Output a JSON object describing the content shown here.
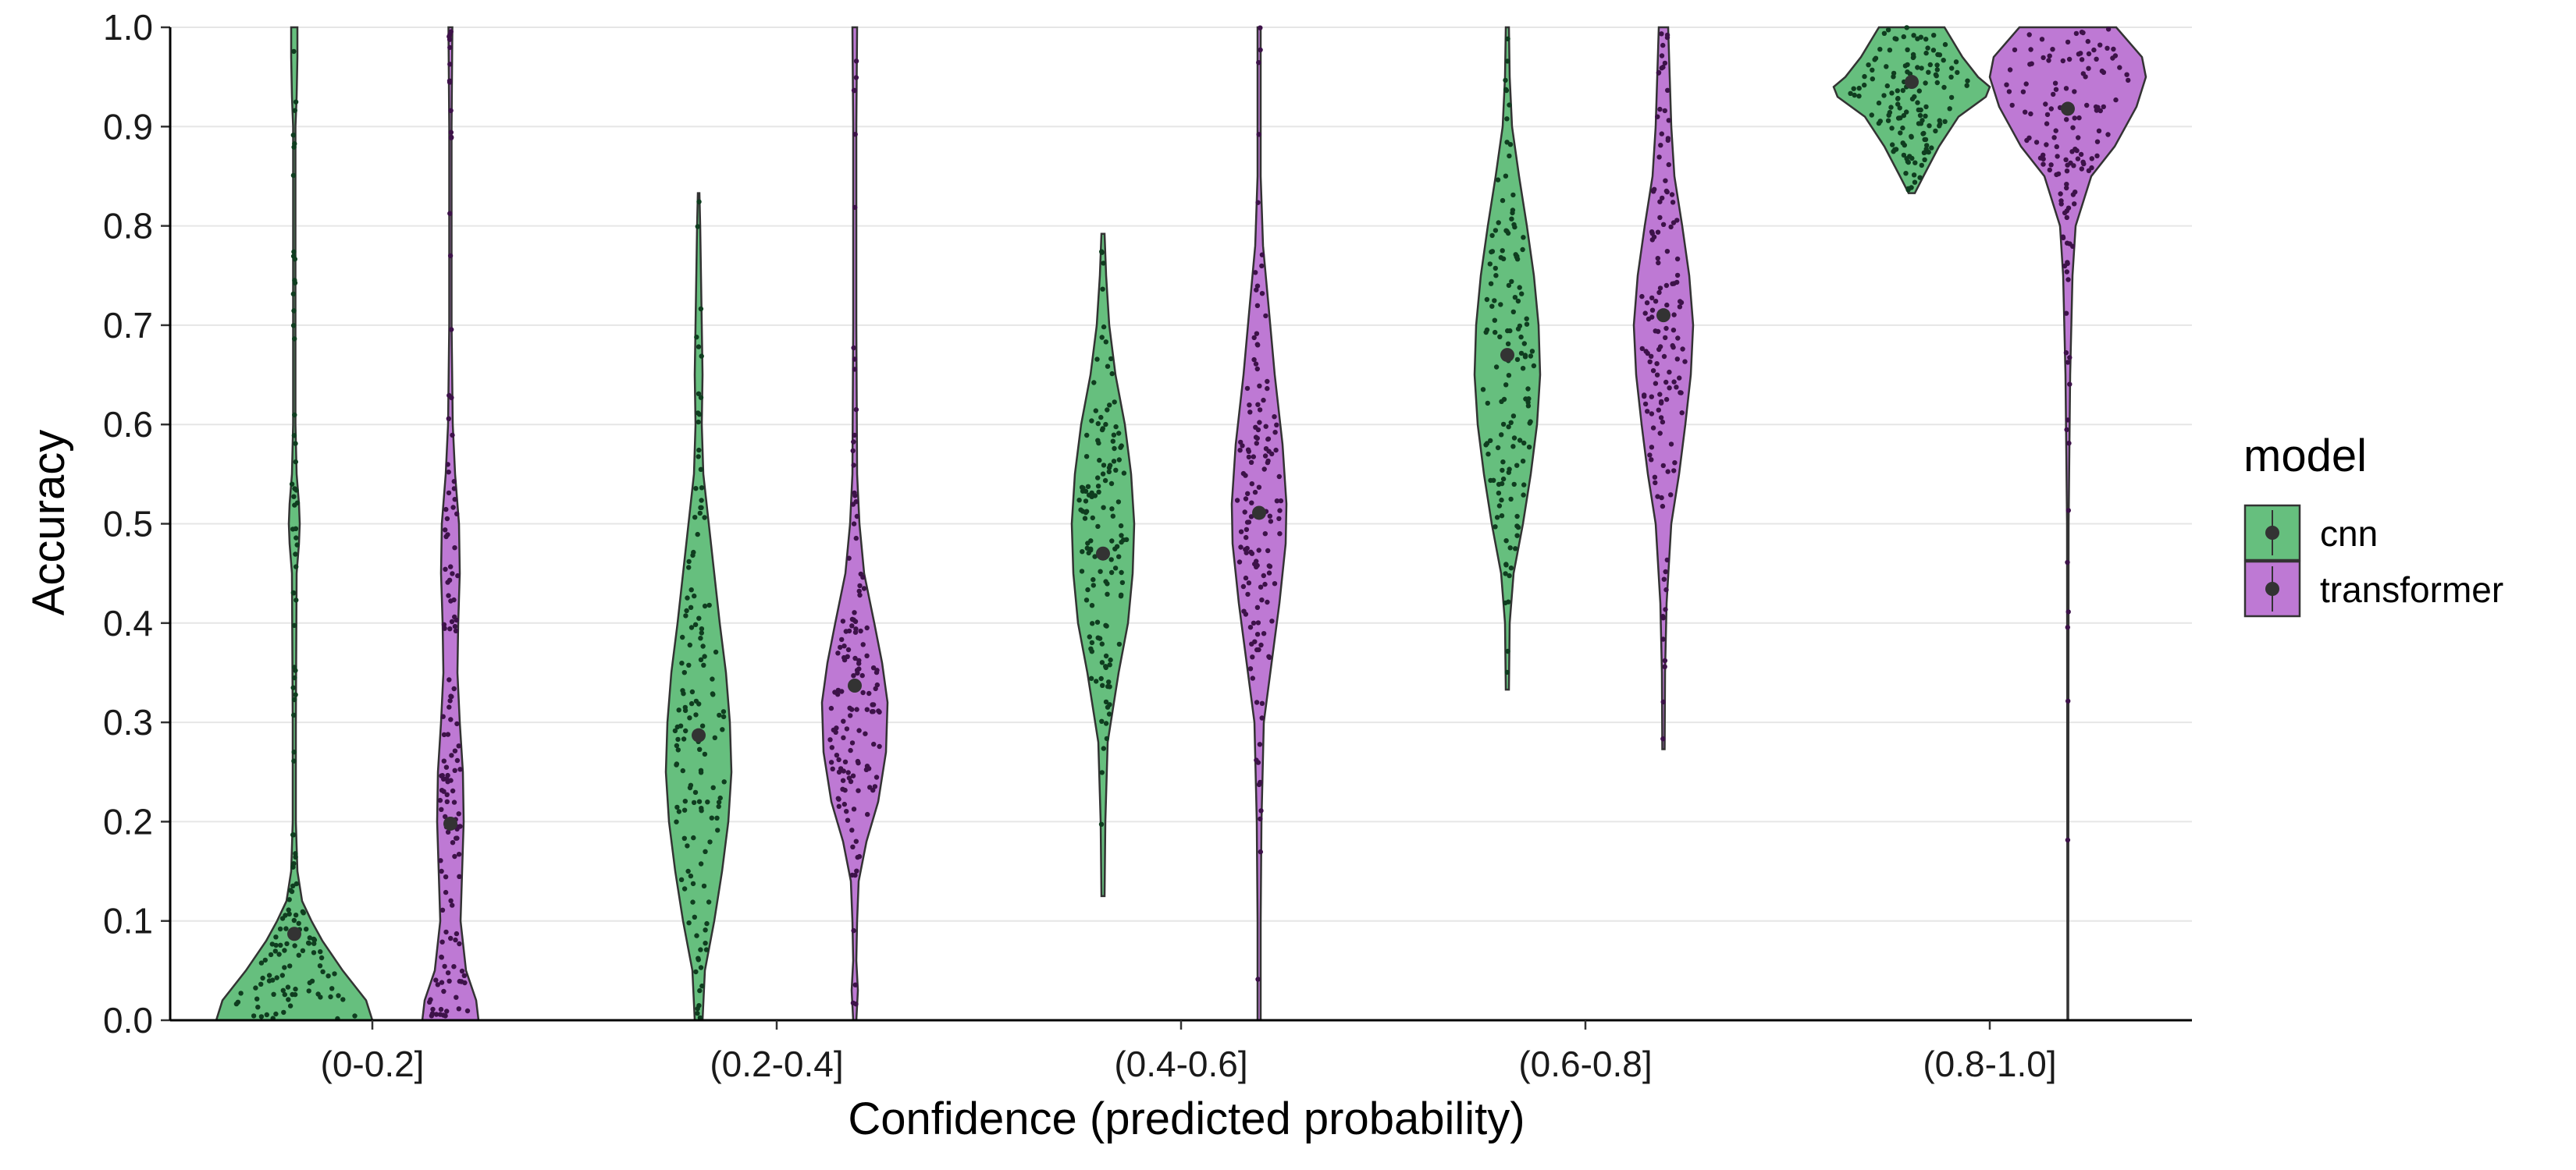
{
  "chart_data": {
    "type": "violin",
    "xlabel": "Confidence (predicted probability)",
    "ylabel": "Accuracy",
    "ylim": [
      0,
      1
    ],
    "yticks": [
      "0.0",
      "0.1",
      "0.2",
      "0.3",
      "0.4",
      "0.5",
      "0.6",
      "0.7",
      "0.8",
      "0.9",
      "1.0"
    ],
    "categories": [
      "(0-0.2]",
      "(0.2-0.4]",
      "(0.4-0.6]",
      "(0.6-0.8]",
      "(0.8-1.0]"
    ],
    "grid": "horizontal",
    "legend": {
      "title": "model",
      "position": "right",
      "entries": [
        "cnn",
        "transformer"
      ]
    },
    "series": [
      {
        "name": "cnn",
        "color": "#66bf7e",
        "point_color": "#0f3d1f",
        "groups": [
          {
            "category": "(0-0.2]",
            "min": 0.0,
            "max": 1.0,
            "mean": 0.087,
            "profile": [
              [
                0.0,
                1.0
              ],
              [
                0.02,
                0.92
              ],
              [
                0.05,
                0.62
              ],
              [
                0.08,
                0.36
              ],
              [
                0.1,
                0.22
              ],
              [
                0.12,
                0.1
              ],
              [
                0.15,
                0.04
              ],
              [
                0.2,
                0.02
              ],
              [
                0.3,
                0.02
              ],
              [
                0.45,
                0.03
              ],
              [
                0.48,
                0.06
              ],
              [
                0.5,
                0.07
              ],
              [
                0.52,
                0.06
              ],
              [
                0.55,
                0.03
              ],
              [
                0.6,
                0.015
              ],
              [
                0.9,
                0.015
              ],
              [
                0.93,
                0.03
              ],
              [
                0.97,
                0.04
              ],
              [
                1.0,
                0.04
              ]
            ]
          },
          {
            "category": "(0.2-0.4]",
            "min": 0.0,
            "max": 0.833,
            "mean": 0.287,
            "profile": [
              [
                0.0,
                0.05
              ],
              [
                0.05,
                0.08
              ],
              [
                0.1,
                0.2
              ],
              [
                0.15,
                0.3
              ],
              [
                0.2,
                0.38
              ],
              [
                0.25,
                0.42
              ],
              [
                0.3,
                0.4
              ],
              [
                0.35,
                0.35
              ],
              [
                0.4,
                0.27
              ],
              [
                0.45,
                0.2
              ],
              [
                0.5,
                0.13
              ],
              [
                0.55,
                0.06
              ],
              [
                0.6,
                0.04
              ],
              [
                0.65,
                0.05
              ],
              [
                0.7,
                0.04
              ],
              [
                0.75,
                0.03
              ],
              [
                0.8,
                0.02
              ],
              [
                0.833,
                0.01
              ]
            ]
          },
          {
            "category": "(0.4-0.6]",
            "min": 0.125,
            "max": 0.792,
            "mean": 0.47,
            "profile": [
              [
                0.125,
                0.02
              ],
              [
                0.2,
                0.03
              ],
              [
                0.28,
                0.06
              ],
              [
                0.35,
                0.2
              ],
              [
                0.4,
                0.32
              ],
              [
                0.45,
                0.38
              ],
              [
                0.5,
                0.4
              ],
              [
                0.55,
                0.36
              ],
              [
                0.6,
                0.28
              ],
              [
                0.65,
                0.16
              ],
              [
                0.7,
                0.08
              ],
              [
                0.75,
                0.04
              ],
              [
                0.792,
                0.02
              ]
            ]
          },
          {
            "category": "(0.6-0.8]",
            "min": 0.333,
            "max": 1.0,
            "mean": 0.67,
            "profile": [
              [
                0.333,
                0.02
              ],
              [
                0.4,
                0.03
              ],
              [
                0.45,
                0.08
              ],
              [
                0.5,
                0.2
              ],
              [
                0.55,
                0.3
              ],
              [
                0.6,
                0.38
              ],
              [
                0.65,
                0.42
              ],
              [
                0.7,
                0.4
              ],
              [
                0.75,
                0.34
              ],
              [
                0.8,
                0.25
              ],
              [
                0.85,
                0.15
              ],
              [
                0.9,
                0.06
              ],
              [
                0.95,
                0.03
              ],
              [
                1.0,
                0.02
              ]
            ]
          },
          {
            "category": "(0.8-1.0]",
            "min": 0.833,
            "max": 1.0,
            "mean": 0.945,
            "profile": [
              [
                0.833,
                0.04
              ],
              [
                0.85,
                0.15
              ],
              [
                0.88,
                0.35
              ],
              [
                0.91,
                0.6
              ],
              [
                0.93,
                0.95
              ],
              [
                0.94,
                1.0
              ],
              [
                0.95,
                0.85
              ],
              [
                0.97,
                0.65
              ],
              [
                1.0,
                0.42
              ]
            ]
          }
        ]
      },
      {
        "name": "transformer",
        "color": "#be79d4",
        "point_color": "#3d1249",
        "groups": [
          {
            "category": "(0-0.2]",
            "min": 0.0,
            "max": 1.0,
            "mean": 0.198,
            "profile": [
              [
                0.0,
                0.36
              ],
              [
                0.02,
                0.33
              ],
              [
                0.05,
                0.2
              ],
              [
                0.1,
                0.13
              ],
              [
                0.15,
                0.15
              ],
              [
                0.2,
                0.17
              ],
              [
                0.25,
                0.16
              ],
              [
                0.3,
                0.12
              ],
              [
                0.35,
                0.09
              ],
              [
                0.4,
                0.1
              ],
              [
                0.45,
                0.12
              ],
              [
                0.5,
                0.11
              ],
              [
                0.55,
                0.06
              ],
              [
                0.6,
                0.03
              ],
              [
                0.7,
                0.015
              ],
              [
                0.9,
                0.015
              ],
              [
                1.0,
                0.025
              ]
            ]
          },
          {
            "category": "(0.2-0.4]",
            "min": 0.0,
            "max": 1.0,
            "mean": 0.337,
            "profile": [
              [
                0.0,
                0.02
              ],
              [
                0.03,
                0.04
              ],
              [
                0.06,
                0.02
              ],
              [
                0.1,
                0.03
              ],
              [
                0.14,
                0.05
              ],
              [
                0.18,
                0.15
              ],
              [
                0.22,
                0.3
              ],
              [
                0.27,
                0.4
              ],
              [
                0.32,
                0.42
              ],
              [
                0.36,
                0.35
              ],
              [
                0.4,
                0.25
              ],
              [
                0.45,
                0.12
              ],
              [
                0.5,
                0.06
              ],
              [
                0.55,
                0.03
              ],
              [
                0.7,
                0.02
              ],
              [
                0.9,
                0.02
              ],
              [
                1.0,
                0.03
              ]
            ]
          },
          {
            "category": "(0.4-0.6]",
            "min": 0.0,
            "max": 1.0,
            "mean": 0.511,
            "profile": [
              [
                0.0,
                0.02
              ],
              [
                0.1,
                0.02
              ],
              [
                0.2,
                0.03
              ],
              [
                0.3,
                0.06
              ],
              [
                0.36,
                0.16
              ],
              [
                0.42,
                0.26
              ],
              [
                0.48,
                0.34
              ],
              [
                0.52,
                0.35
              ],
              [
                0.58,
                0.3
              ],
              [
                0.65,
                0.2
              ],
              [
                0.72,
                0.12
              ],
              [
                0.78,
                0.05
              ],
              [
                0.85,
                0.02
              ],
              [
                0.95,
                0.02
              ],
              [
                1.0,
                0.02
              ]
            ]
          },
          {
            "category": "(0.6-0.8]",
            "min": 0.273,
            "max": 1.0,
            "mean": 0.71,
            "profile": [
              [
                0.273,
                0.015
              ],
              [
                0.35,
                0.02
              ],
              [
                0.42,
                0.04
              ],
              [
                0.5,
                0.1
              ],
              [
                0.55,
                0.2
              ],
              [
                0.6,
                0.28
              ],
              [
                0.65,
                0.35
              ],
              [
                0.7,
                0.38
              ],
              [
                0.75,
                0.33
              ],
              [
                0.8,
                0.24
              ],
              [
                0.85,
                0.14
              ],
              [
                0.9,
                0.1
              ],
              [
                0.95,
                0.08
              ],
              [
                1.0,
                0.06
              ]
            ]
          },
          {
            "category": "(0.8-1.0]",
            "min": 0.0,
            "max": 1.0,
            "mean": 0.918,
            "profile": [
              [
                0.0,
                0.005
              ],
              [
                0.5,
                0.01
              ],
              [
                0.65,
                0.03
              ],
              [
                0.75,
                0.06
              ],
              [
                0.8,
                0.1
              ],
              [
                0.85,
                0.3
              ],
              [
                0.88,
                0.6
              ],
              [
                0.92,
                0.88
              ],
              [
                0.95,
                1.0
              ],
              [
                0.97,
                0.95
              ],
              [
                1.0,
                0.62
              ]
            ]
          }
        ]
      }
    ]
  }
}
